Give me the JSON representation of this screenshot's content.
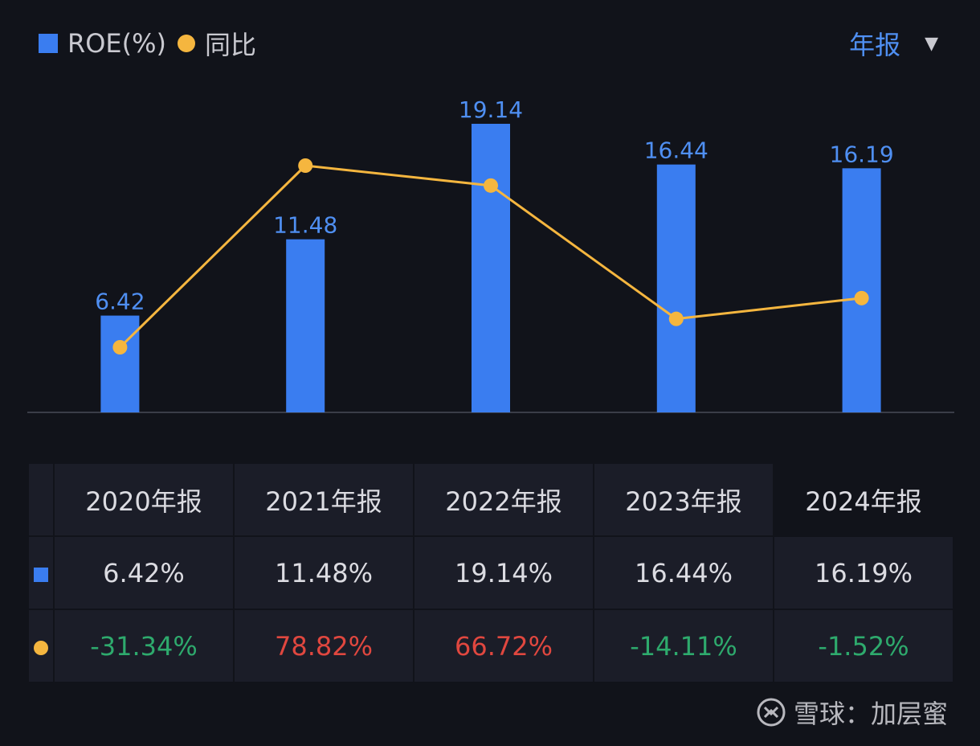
{
  "legend": {
    "bar_label": "ROE(%)",
    "line_label": "同比"
  },
  "period_selector": {
    "label": "年报"
  },
  "colors": {
    "bar": "#3a7df0",
    "line": "#f5b63f",
    "bar_label": "#4f8ff2",
    "positive": "#e0473f",
    "negative": "#2eaa6d",
    "axis": "#3a3d48"
  },
  "chart_data": {
    "type": "bar",
    "categories": [
      "2020年报",
      "2021年报",
      "2022年报",
      "2023年报",
      "2024年报"
    ],
    "series": [
      {
        "name": "ROE(%)",
        "type": "bar",
        "values": [
          6.42,
          11.48,
          19.14,
          16.44,
          16.19
        ],
        "labels": [
          "6.42",
          "11.48",
          "19.14",
          "16.44",
          "16.19"
        ]
      },
      {
        "name": "同比",
        "type": "line",
        "values": [
          -31.34,
          78.82,
          66.72,
          -14.11,
          -1.52
        ]
      }
    ],
    "ylim_bar": [
      0,
      19.14
    ],
    "ylim_line": [
      -31.34,
      78.82
    ],
    "grid": false,
    "legend_position": "top-left"
  },
  "table": {
    "headers": [
      "2020年报",
      "2021年报",
      "2022年报",
      "2023年报",
      "2024年报"
    ],
    "roe_row": [
      "6.42%",
      "11.48%",
      "19.14%",
      "16.44%",
      "16.19%"
    ],
    "yoy_row": [
      "-31.34%",
      "78.82%",
      "66.72%",
      "-14.11%",
      "-1.52%"
    ]
  },
  "watermark": {
    "text": "雪球：加层蜜",
    "logo_icon": "snowball-logo-icon"
  }
}
